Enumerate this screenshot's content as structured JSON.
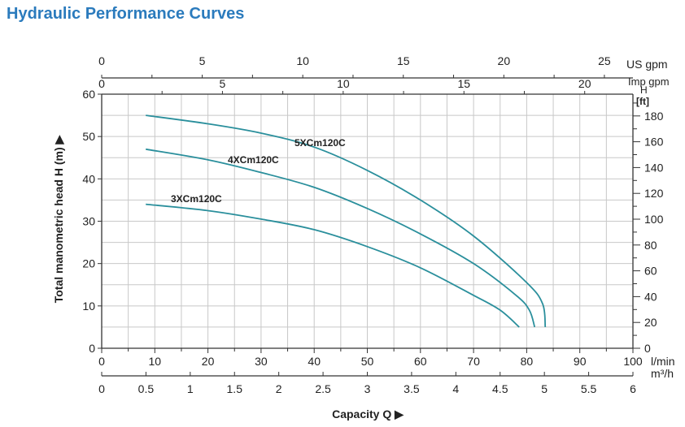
{
  "chart_data": {
    "type": "line",
    "title": "Hydraulic Performance Curves",
    "xlabel": "Capacity Q",
    "ylabel": "Total manometric head H (m)",
    "xlim": [
      0,
      100
    ],
    "ylim": [
      0,
      60
    ],
    "grid": true,
    "x_unit": "l/min",
    "x_ticks": [
      0,
      10,
      20,
      30,
      40,
      50,
      60,
      70,
      80,
      90,
      100
    ],
    "y_ticks": [
      0,
      10,
      20,
      30,
      40,
      50,
      60
    ],
    "secondary_axes": {
      "us_gpm": {
        "label": "US gpm",
        "ticks": [
          0,
          5,
          10,
          15,
          20,
          25
        ]
      },
      "imp_gpm": {
        "label": "Imp gpm",
        "ticks": [
          0,
          5,
          10,
          15,
          20
        ]
      },
      "m3h": {
        "label": "m³/h",
        "ticks": [
          "0",
          "0.5",
          "1",
          "1.5",
          "2",
          "2.5",
          "3",
          "3.5",
          "4",
          "4.5",
          "5",
          "5.5",
          "6"
        ]
      },
      "ft": {
        "label_top": "H",
        "label": "[ft]",
        "ticks": [
          0,
          20,
          40,
          60,
          80,
          100,
          120,
          140,
          160,
          180
        ]
      }
    },
    "series": [
      {
        "name": "5XCm120C",
        "x": [
          8.3,
          20,
          30,
          40,
          50,
          60,
          70,
          80,
          83,
          83.5
        ],
        "y": [
          55,
          53,
          50.8,
          47.5,
          42,
          35,
          26.5,
          15.5,
          10.5,
          5
        ]
      },
      {
        "name": "4XCm120C",
        "x": [
          8.3,
          20,
          30,
          40,
          50,
          60,
          70,
          78,
          80.5,
          81.5
        ],
        "y": [
          47,
          44.5,
          41.5,
          38,
          33,
          27,
          20,
          12.5,
          9,
          5
        ]
      },
      {
        "name": "3XCm120C",
        "x": [
          8.3,
          20,
          30,
          40,
          50,
          60,
          70,
          75,
          78.6
        ],
        "y": [
          34,
          32.5,
          30.5,
          28,
          24,
          19,
          12.5,
          9,
          5
        ]
      }
    ],
    "line_color": "#2a8f9c"
  }
}
